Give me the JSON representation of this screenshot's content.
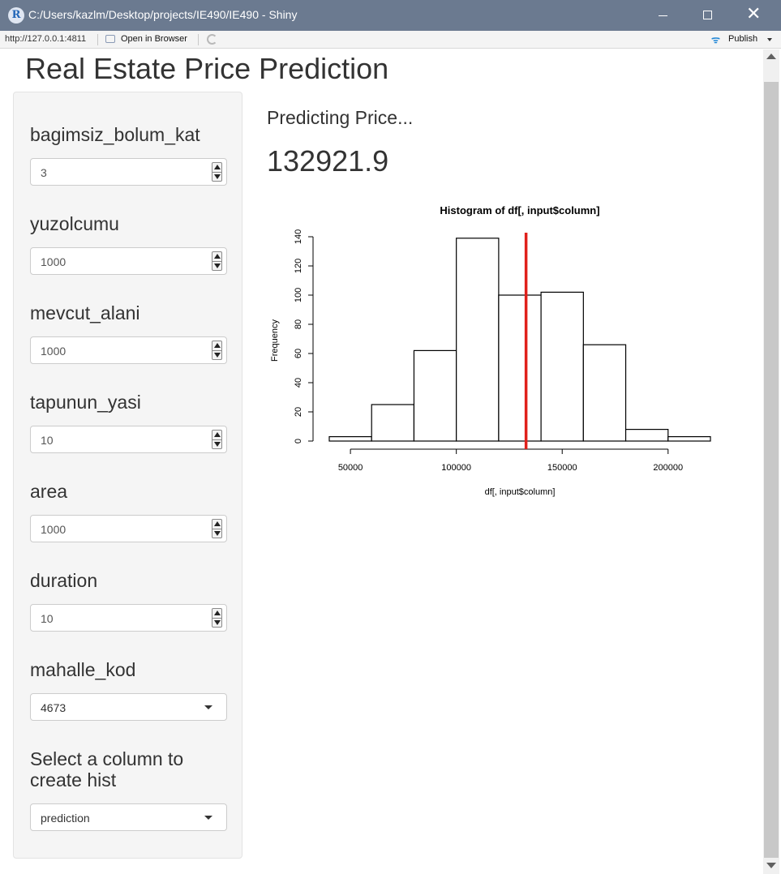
{
  "window": {
    "title": "C:/Users/kazlm/Desktop/projects/IE490/IE490 - Shiny",
    "logo_letter": "R"
  },
  "toolbar": {
    "url": "http://127.0.0.1:4811",
    "open_in_browser": "Open in Browser",
    "publish": "Publish"
  },
  "app": {
    "title": "Real Estate Price Prediction"
  },
  "sidebar": {
    "fields": [
      {
        "label": "bagimsiz_bolum_kat",
        "value": "3"
      },
      {
        "label": "yuzolcumu",
        "value": "1000"
      },
      {
        "label": "mevcut_alani",
        "value": "1000"
      },
      {
        "label": "tapunun_yasi",
        "value": "10"
      },
      {
        "label": "area",
        "value": "1000"
      },
      {
        "label": "duration",
        "value": "10"
      }
    ],
    "mahalle": {
      "label": "mahalle_kod",
      "value": "4673"
    },
    "column_select": {
      "label_line1": "Select a column to",
      "label_line2": "create hist",
      "value": "prediction"
    }
  },
  "main": {
    "heading": "Predicting Price...",
    "prediction": "132921.9"
  },
  "chart_data": {
    "type": "bar",
    "title": "Histogram of df[, input$column]",
    "xlabel": "df[, input$column]",
    "ylabel": "Frequency",
    "bin_edges": [
      40000,
      60000,
      80000,
      100000,
      120000,
      140000,
      160000,
      180000,
      200000,
      220000
    ],
    "values": [
      3,
      25,
      62,
      139,
      100,
      102,
      66,
      8,
      3
    ],
    "xlim": [
      40000,
      220000
    ],
    "ylim": [
      0,
      140
    ],
    "x_ticks": [
      50000,
      100000,
      150000,
      200000
    ],
    "x_tick_labels": [
      "50000",
      "100000",
      "150000",
      "200000"
    ],
    "y_ticks": [
      0,
      20,
      40,
      60,
      80,
      100,
      120,
      140
    ],
    "y_tick_labels": [
      "0",
      "20",
      "40",
      "60",
      "80",
      "100",
      "120",
      "140"
    ],
    "vline": 132921.9,
    "vline_color": "#e0201b",
    "grid": false
  }
}
